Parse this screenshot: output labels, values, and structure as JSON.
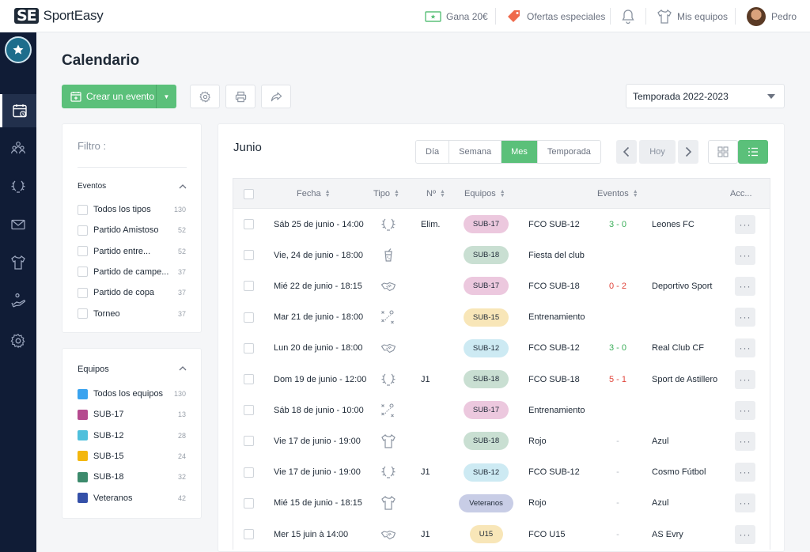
{
  "app": {
    "logo_mark": "SE",
    "name": "SportEasy"
  },
  "topbar": {
    "earn_label": "Gana 20€",
    "offers_label": "Ofertas especiales",
    "teams_label": "Mis equipos",
    "user_name": "Pedro"
  },
  "colors": {
    "brand": "#5bc07a",
    "rail": "#101c36",
    "win": "#3cae5a",
    "loss": "#e0453c"
  },
  "sidebar": {
    "items": [
      {
        "icon": "calendar-icon",
        "active": true
      },
      {
        "icon": "members-icon",
        "active": false
      },
      {
        "icon": "trophy-icon",
        "active": false
      },
      {
        "icon": "mail-icon",
        "active": false
      },
      {
        "icon": "jersey-icon",
        "active": false
      },
      {
        "icon": "handshake-icon",
        "active": false
      },
      {
        "icon": "gear-icon",
        "active": false
      }
    ]
  },
  "page": {
    "title": "Calendario",
    "create_label": "Crear un evento",
    "season": "Temporada 2022-2023"
  },
  "filter": {
    "title": "Filtro :",
    "events_head": "Eventos",
    "events": [
      {
        "label": "Todos los tipos",
        "count": "130"
      },
      {
        "label": "Partido Amistoso",
        "count": "52"
      },
      {
        "label": "Partido entre...",
        "count": "52"
      },
      {
        "label": "Partido de campe...",
        "count": "37"
      },
      {
        "label": "Partido de copa",
        "count": "37"
      },
      {
        "label": "Torneo",
        "count": "37"
      }
    ],
    "teams_head": "Equipos",
    "teams": [
      {
        "label": "Todos los equipos",
        "count": "130",
        "color": "#3aa3ef"
      },
      {
        "label": "SUB-17",
        "count": "13",
        "color": "#b54b8f"
      },
      {
        "label": "SUB-12",
        "count": "28",
        "color": "#4fc0dc"
      },
      {
        "label": "SUB-15",
        "count": "24",
        "color": "#f3b70f"
      },
      {
        "label": "SUB-18",
        "count": "32",
        "color": "#3c8a6c"
      },
      {
        "label": "Veteranos",
        "count": "42",
        "color": "#3450a8"
      }
    ]
  },
  "calendar": {
    "month": "Junio",
    "tabs": [
      "Día",
      "Semana",
      "Mes",
      "Temporada"
    ],
    "active_tab": "Mes",
    "today_label": "Hoy",
    "columns": {
      "fecha": "Fecha",
      "tipo": "Tipo",
      "num": "Nº",
      "equipos": "Equipos",
      "eventos": "Eventos",
      "acciones": "Acc..."
    },
    "rows": [
      {
        "date": "Sáb 25 de junio - 14:00",
        "type_icon": "trophy-icon",
        "num": "Elim.",
        "team": "SUB-17",
        "team_bg": "#ecc8de",
        "event": "FCO SUB-12",
        "score": "3 - 0",
        "result": "win",
        "opponent": "Leones FC"
      },
      {
        "date": "Vie, 24 de junio - 18:00",
        "type_icon": "drink-icon",
        "num": "",
        "team": "SUB-18",
        "team_bg": "#c9dfd2",
        "event": "Fiesta del club",
        "score": "",
        "result": "",
        "opponent": ""
      },
      {
        "date": "Mié 22 de junio - 18:15",
        "type_icon": "handshake-icon",
        "num": "",
        "team": "SUB-17",
        "team_bg": "#ecc8de",
        "event": "FCO SUB-18",
        "score": "0 - 2",
        "result": "loss",
        "opponent": "Deportivo Sport"
      },
      {
        "date": "Mar 21 de junio - 18:00",
        "type_icon": "tactics-icon",
        "num": "",
        "team": "SUB-15",
        "team_bg": "#f8e6b8",
        "event": "Entrenamiento",
        "score": "",
        "result": "",
        "opponent": ""
      },
      {
        "date": "Lun 20 de junio - 18:00",
        "type_icon": "handshake-icon",
        "num": "",
        "team": "SUB-12",
        "team_bg": "#cdeaf3",
        "event": "FCO SUB-12",
        "score": "3 - 0",
        "result": "win",
        "opponent": "Real Club CF"
      },
      {
        "date": "Dom 19 de junio - 12:00",
        "type_icon": "trophy-icon",
        "num": "J1",
        "team": "SUB-18",
        "team_bg": "#c9dfd2",
        "event": "FCO SUB-18",
        "score": "5 - 1",
        "result": "loss",
        "opponent": "Sport de Astillero"
      },
      {
        "date": "Sáb 18 de junio - 10:00",
        "type_icon": "tactics-icon",
        "num": "",
        "team": "SUB-17",
        "team_bg": "#ecc8de",
        "event": "Entrenamiento",
        "score": "",
        "result": "",
        "opponent": ""
      },
      {
        "date": "Vie 17 de junio - 19:00",
        "type_icon": "jersey-icon",
        "num": "",
        "team": "SUB-18",
        "team_bg": "#c9dfd2",
        "event": "Rojo",
        "score": "-",
        "result": "none",
        "opponent": "Azul"
      },
      {
        "date": "Vie 17 de junio - 19:00",
        "type_icon": "trophy-icon",
        "num": "J1",
        "team": "SUB-12",
        "team_bg": "#cdeaf3",
        "event": "FCO SUB-12",
        "score": "-",
        "result": "none",
        "opponent": "Cosmo Fútbol"
      },
      {
        "date": "Mié 15 de junio - 18:15",
        "type_icon": "jersey-icon",
        "num": "",
        "team": "Veteranos",
        "team_bg": "#c8cde6",
        "event": "Rojo",
        "score": "-",
        "result": "none",
        "opponent": "Azul"
      },
      {
        "date": "Mer 15 juin à 14:00",
        "type_icon": "handshake-icon",
        "num": "J1",
        "team": "U15",
        "team_bg": "#f8e6b8",
        "event": "FCO U15",
        "score": "-",
        "result": "none",
        "opponent": "AS Evry"
      }
    ],
    "actions_label": "···"
  }
}
